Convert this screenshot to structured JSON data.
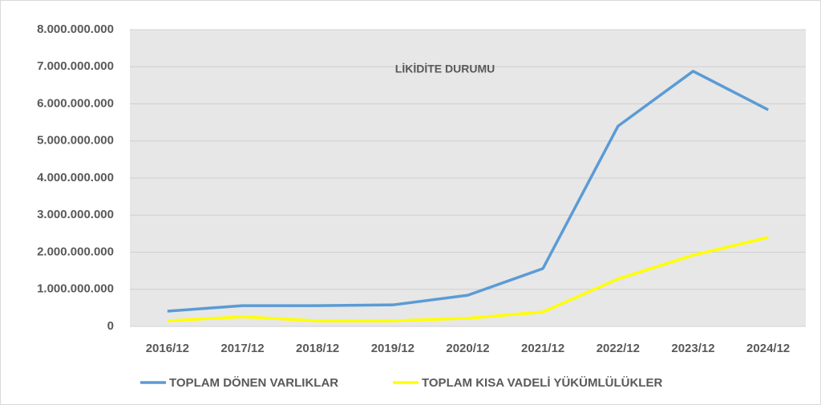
{
  "chart_data": {
    "type": "line",
    "title": "LİKİDİTE DURUMU",
    "categories": [
      "2016/12",
      "2017/12",
      "2018/12",
      "2019/12",
      "2020/12",
      "2021/12",
      "2022/12",
      "2023/12",
      "2024/12"
    ],
    "series": [
      {
        "name": "TOPLAM DÖNEN VARLIKLAR",
        "color": "#5b9bd5",
        "values": [
          410000000,
          560000000,
          560000000,
          580000000,
          840000000,
          1560000000,
          5400000000,
          6880000000,
          5840000000
        ]
      },
      {
        "name": "TOPLAM KISA VADELİ YÜKÜMLÜLÜKLER",
        "color": "#ffff00",
        "values": [
          150000000,
          260000000,
          150000000,
          150000000,
          220000000,
          390000000,
          1280000000,
          1920000000,
          2400000000
        ]
      }
    ],
    "ylim": [
      0,
      8000000000
    ],
    "yticks": [
      0,
      {
        "value": 1000000000,
        "label": "1.000.000.000"
      },
      {
        "value": 2000000000,
        "label": "2.000.000.000"
      },
      {
        "value": 3000000000,
        "label": "3.000.000.000"
      },
      {
        "value": 4000000000,
        "label": "4.000.000.000"
      },
      {
        "value": 5000000000,
        "label": "5.000.000.000"
      },
      {
        "value": 6000000000,
        "label": "6.000.000.000"
      },
      {
        "value": 7000000000,
        "label": "7.000.000.000"
      },
      {
        "value": 8000000000,
        "label": "8.000.000.000"
      }
    ],
    "grid": true,
    "legend": "bottom"
  }
}
